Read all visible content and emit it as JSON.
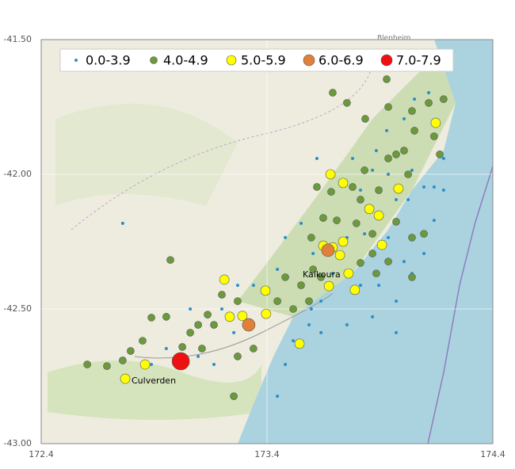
{
  "chart_data": {
    "type": "scatter",
    "xlim": [
      172.4,
      174.4
    ],
    "xticks": [
      172.4,
      173.4,
      174.4
    ],
    "ylim": [
      -43.0,
      -41.5
    ],
    "yticks": [
      {
        "value": -41.5,
        "label": "-41.50"
      },
      {
        "value": -42.0,
        "label": "-42.00"
      },
      {
        "value": -42.5,
        "label": "-42.50"
      },
      {
        "value": -43.0,
        "label": "-43.00"
      }
    ],
    "grid": true,
    "places": [
      "Kaikoura",
      "Culverden",
      "Blenheim"
    ],
    "series": [
      {
        "name": "0.0-3.9",
        "color": "#2a8fc8",
        "x": [
          173.867,
          173.814,
          173.972,
          174.095,
          174.182,
          174.14,
          174.042,
          173.972,
          173.867,
          173.814,
          173.754,
          173.639,
          173.586,
          173.516,
          173.481,
          173.446,
          173.621,
          173.779,
          173.884,
          173.93,
          174.007,
          174.053,
          174.116,
          174.042,
          173.937,
          173.832,
          173.754,
          173.709,
          173.604,
          173.551,
          173.481,
          173.446,
          173.34,
          173.27,
          173.2,
          173.137,
          173.06,
          173.025,
          172.954,
          172.888,
          172.761,
          173.095,
          173.165,
          173.253,
          173.34,
          173.691,
          173.895,
          173.972,
          173.937,
          174.007,
          174.095,
          174.182,
          174.14,
          174.025,
          173.639,
          173.596
        ],
        "y": [
          -41.985,
          -42.059,
          -42.094,
          -42.047,
          -42.059,
          -42.171,
          -42.368,
          -42.471,
          -42.529,
          -42.412,
          -42.559,
          -42.588,
          -42.559,
          -42.618,
          -42.706,
          -42.824,
          -41.941,
          -41.941,
          -41.912,
          -41.838,
          -41.794,
          -41.721,
          -41.697,
          -41.985,
          -42.0,
          -42.221,
          -42.235,
          -42.294,
          -42.294,
          -42.182,
          -42.235,
          -42.353,
          -42.412,
          -42.412,
          -42.5,
          -42.529,
          -42.5,
          -42.676,
          -42.647,
          -42.706,
          -42.182,
          -42.676,
          -42.706,
          -42.588,
          -42.559,
          -42.368,
          -42.412,
          -42.588,
          -42.235,
          -42.324,
          -42.294,
          -41.941,
          -42.047,
          -42.094,
          -42.471,
          -42.5
        ]
      },
      {
        "name": "4.0-4.9",
        "color": "#6b9a3c",
        "x": [
          173.93,
          173.691,
          173.754,
          173.835,
          173.937,
          174.042,
          174.053,
          174.116,
          174.14,
          174.007,
          173.937,
          173.832,
          173.779,
          173.684,
          173.621,
          173.895,
          173.814,
          173.709,
          173.649,
          173.596,
          173.796,
          173.867,
          173.972,
          174.042,
          173.867,
          173.937,
          173.814,
          173.884,
          173.604,
          173.639,
          173.481,
          173.551,
          173.516,
          173.586,
          173.446,
          173.27,
          173.2,
          173.165,
          173.095,
          173.06,
          173.025,
          173.112,
          173.27,
          173.34,
          172.972,
          172.888,
          172.796,
          172.761,
          172.691,
          172.604,
          172.849,
          172.954,
          173.137,
          173.253,
          174.042,
          174.095,
          173.972,
          174.165,
          174.025,
          174.182
        ],
        "y": [
          -41.647,
          -41.697,
          -41.735,
          -41.794,
          -41.75,
          -41.765,
          -41.838,
          -41.735,
          -41.859,
          -41.912,
          -41.941,
          -41.985,
          -42.047,
          -42.065,
          -42.047,
          -42.059,
          -42.094,
          -42.171,
          -42.162,
          -42.235,
          -42.182,
          -42.221,
          -42.176,
          -42.235,
          -42.294,
          -42.324,
          -42.329,
          -42.368,
          -42.353,
          -42.382,
          -42.382,
          -42.412,
          -42.5,
          -42.471,
          -42.471,
          -42.471,
          -42.447,
          -42.559,
          -42.559,
          -42.588,
          -42.641,
          -42.647,
          -42.676,
          -42.647,
          -42.318,
          -42.532,
          -42.656,
          -42.691,
          -42.712,
          -42.706,
          -42.618,
          -42.529,
          -42.521,
          -42.824,
          -42.382,
          -42.221,
          -41.926,
          -41.926,
          -42.0,
          -41.721
        ]
      },
      {
        "name": "5.0-5.9",
        "color": "#ffff00",
        "x": [
          173.681,
          173.737,
          173.982,
          174.147,
          173.853,
          173.895,
          173.737,
          173.649,
          173.691,
          173.723,
          173.909,
          173.761,
          173.211,
          173.393,
          173.674,
          173.789,
          173.235,
          173.291,
          173.396,
          172.86,
          172.772,
          173.544
        ],
        "y": [
          -42.0,
          -42.032,
          -42.053,
          -41.809,
          -42.129,
          -42.153,
          -42.25,
          -42.265,
          -42.271,
          -42.3,
          -42.262,
          -42.368,
          -42.391,
          -42.432,
          -42.415,
          -42.429,
          -42.529,
          -42.526,
          -42.518,
          -42.706,
          -42.759,
          -42.629
        ]
      },
      {
        "name": "6.0-6.9",
        "color": "#e0803a",
        "x": [
          173.67,
          173.319
        ],
        "y": [
          -42.282,
          -42.559
        ]
      },
      {
        "name": "7.0-7.9",
        "color": "#ee1111",
        "x": [
          173.018
        ],
        "y": [
          -42.694
        ]
      }
    ]
  }
}
